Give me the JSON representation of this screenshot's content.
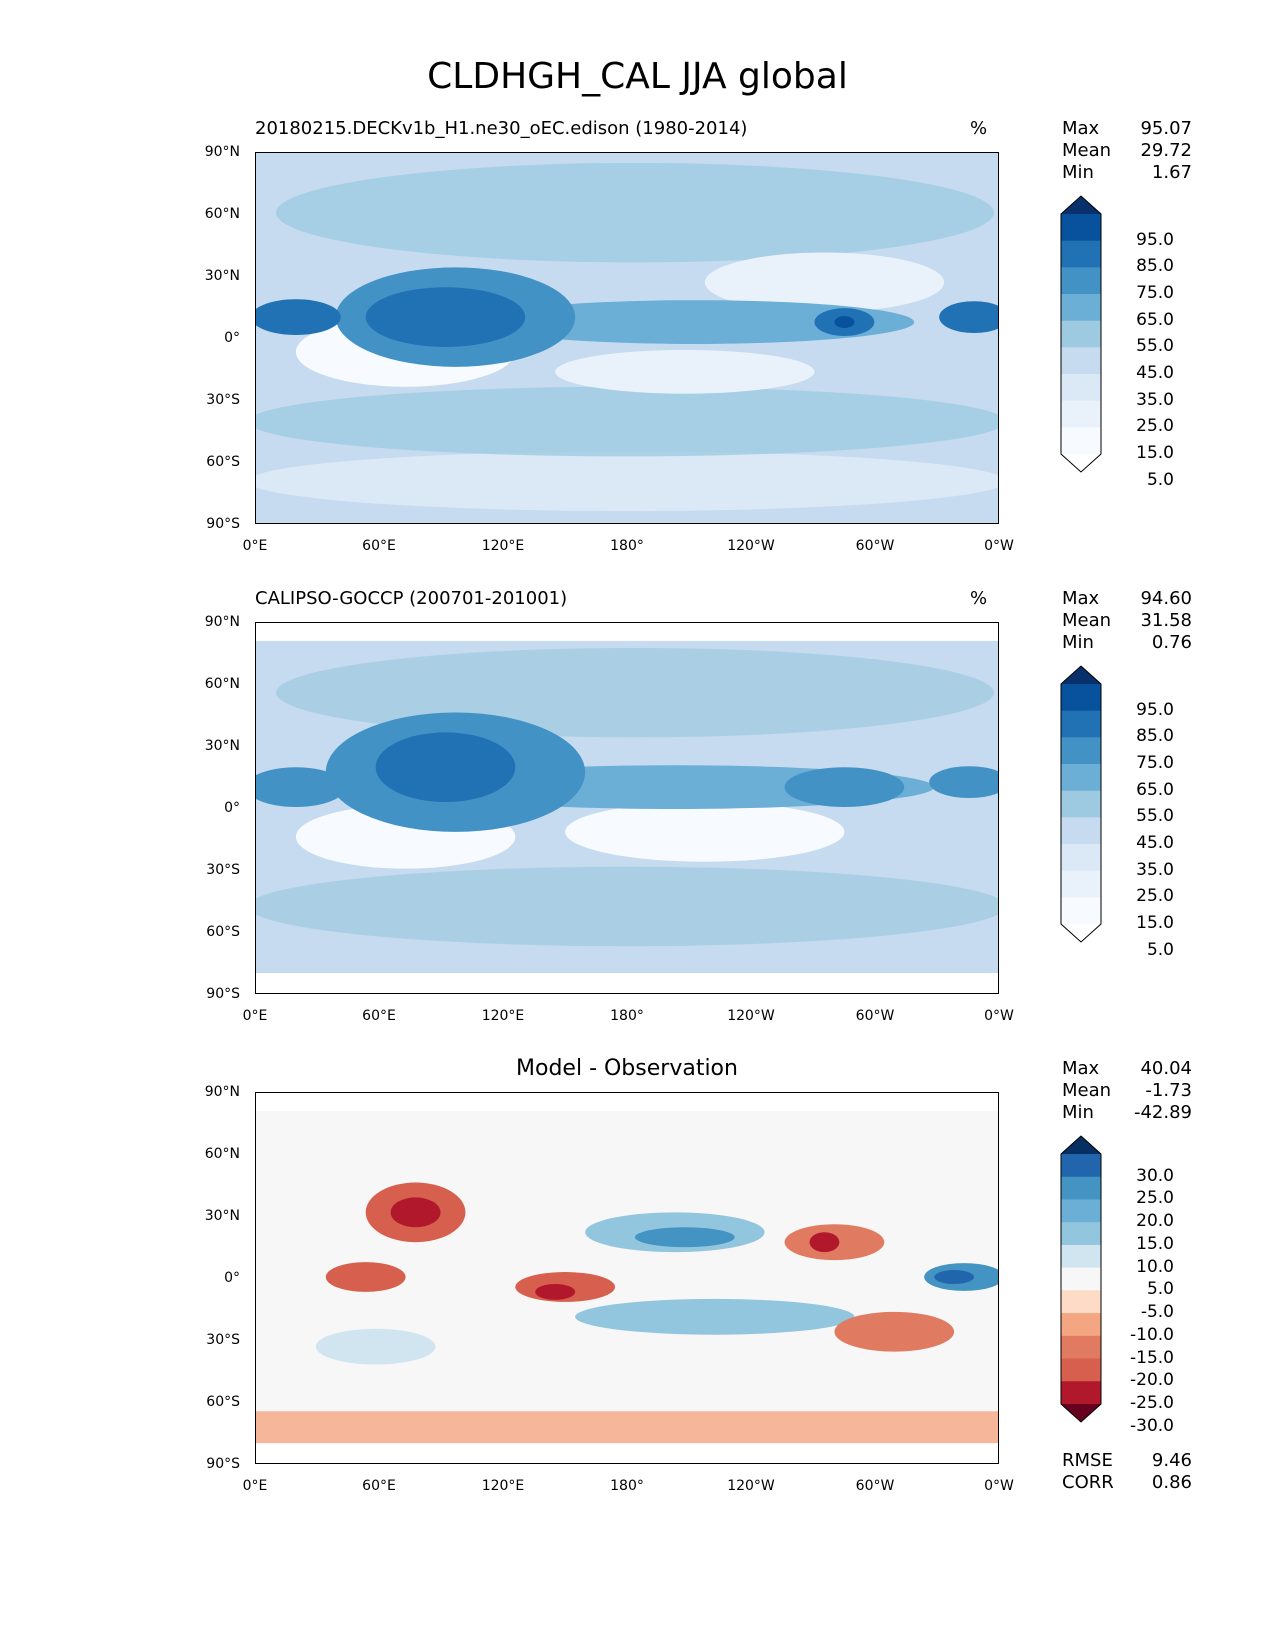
{
  "figure": {
    "title": "CLDHGH_CAL JJA global"
  },
  "axes": {
    "lat_ticks": [
      "90°N",
      "60°N",
      "30°N",
      "0°",
      "30°S",
      "60°S",
      "90°S"
    ],
    "lon_ticks": [
      "0°E",
      "60°E",
      "120°E",
      "180°",
      "120°W",
      "60°W",
      "0°W"
    ]
  },
  "panels": [
    {
      "id": "test",
      "title": "20180215.DECKv1b_H1.ne30_oEC.edison (1980-2014)",
      "units": "%",
      "stats": [
        {
          "label": "Max",
          "value": "95.07"
        },
        {
          "label": "Mean",
          "value": "29.72"
        },
        {
          "label": "Min",
          "value": "1.67"
        }
      ],
      "colorbar": {
        "labels": [
          "95.0",
          "85.0",
          "75.0",
          "65.0",
          "55.0",
          "45.0",
          "35.0",
          "25.0",
          "15.0",
          "5.0"
        ],
        "colors": [
          "#08306b",
          "#08519c",
          "#2171b5",
          "#4292c6",
          "#6baed6",
          "#9ecae1",
          "#c6dbef",
          "#dbe9f6",
          "#e9f2fa",
          "#f7fbff",
          "#ffffff"
        ]
      }
    },
    {
      "id": "reference",
      "title": "CALIPSO-GOCCP (200701-201001)",
      "units": "%",
      "stats": [
        {
          "label": "Max",
          "value": "94.60"
        },
        {
          "label": "Mean",
          "value": "31.58"
        },
        {
          "label": "Min",
          "value": "0.76"
        }
      ],
      "colorbar": {
        "labels": [
          "95.0",
          "85.0",
          "75.0",
          "65.0",
          "55.0",
          "45.0",
          "35.0",
          "25.0",
          "15.0",
          "5.0"
        ],
        "colors": [
          "#08306b",
          "#08519c",
          "#2171b5",
          "#4292c6",
          "#6baed6",
          "#9ecae1",
          "#c6dbef",
          "#dbe9f6",
          "#e9f2fa",
          "#f7fbff",
          "#ffffff"
        ]
      }
    },
    {
      "id": "difference",
      "title": "Model - Observation",
      "units": "",
      "stats": [
        {
          "label": "Max",
          "value": "40.04"
        },
        {
          "label": "Mean",
          "value": "-1.73"
        },
        {
          "label": "Min",
          "value": "-42.89"
        }
      ],
      "metrics": [
        {
          "label": "RMSE",
          "value": "9.46"
        },
        {
          "label": "CORR",
          "value": "0.86"
        }
      ],
      "colorbar": {
        "labels": [
          "30.0",
          "25.0",
          "20.0",
          "15.0",
          "10.0",
          "5.0",
          "-5.0",
          "-10.0",
          "-15.0",
          "-20.0",
          "-25.0",
          "-30.0"
        ],
        "colors": [
          "#053061",
          "#2166ac",
          "#4393c3",
          "#6baed6",
          "#92c5de",
          "#d1e5f0",
          "#f7f7f7",
          "#fddbc7",
          "#f4a582",
          "#e07b62",
          "#d6604d",
          "#b2182b",
          "#67001f"
        ]
      }
    }
  ],
  "chart_data": [
    {
      "type": "heatmap",
      "title": "20180215.DECKv1b_H1.ne30_oEC.edison (1980-2014)",
      "units": "%",
      "x_ticks": [
        "0°E",
        "60°E",
        "120°E",
        "180°",
        "120°W",
        "60°W",
        "0°W"
      ],
      "y_ticks": [
        "90°N",
        "60°N",
        "30°N",
        "0°",
        "30°S",
        "60°S",
        "90°S"
      ],
      "xlim": [
        0,
        360
      ],
      "ylim": [
        -90,
        90
      ],
      "levels": [
        5,
        15,
        25,
        35,
        45,
        55,
        65,
        75,
        85,
        95
      ],
      "stats": {
        "max": 95.07,
        "mean": 29.72,
        "min": 1.67
      }
    },
    {
      "type": "heatmap",
      "title": "CALIPSO-GOCCP (200701-201001)",
      "units": "%",
      "x_ticks": [
        "0°E",
        "60°E",
        "120°E",
        "180°",
        "120°W",
        "60°W",
        "0°W"
      ],
      "y_ticks": [
        "90°N",
        "60°N",
        "30°N",
        "0°",
        "30°S",
        "60°S",
        "90°S"
      ],
      "xlim": [
        0,
        360
      ],
      "ylim": [
        -90,
        90
      ],
      "levels": [
        5,
        15,
        25,
        35,
        45,
        55,
        65,
        75,
        85,
        95
      ],
      "stats": {
        "max": 94.6,
        "mean": 31.58,
        "min": 0.76
      }
    },
    {
      "type": "heatmap",
      "title": "Model - Observation",
      "x_ticks": [
        "0°E",
        "60°E",
        "120°E",
        "180°",
        "120°W",
        "60°W",
        "0°W"
      ],
      "y_ticks": [
        "90°N",
        "60°N",
        "30°N",
        "0°",
        "30°S",
        "60°S",
        "90°S"
      ],
      "xlim": [
        0,
        360
      ],
      "ylim": [
        -90,
        90
      ],
      "levels": [
        -30,
        -25,
        -20,
        -15,
        -10,
        -5,
        5,
        10,
        15,
        20,
        25,
        30
      ],
      "stats": {
        "max": 40.04,
        "mean": -1.73,
        "min": -42.89,
        "rmse": 9.46,
        "corr": 0.86
      }
    }
  ]
}
